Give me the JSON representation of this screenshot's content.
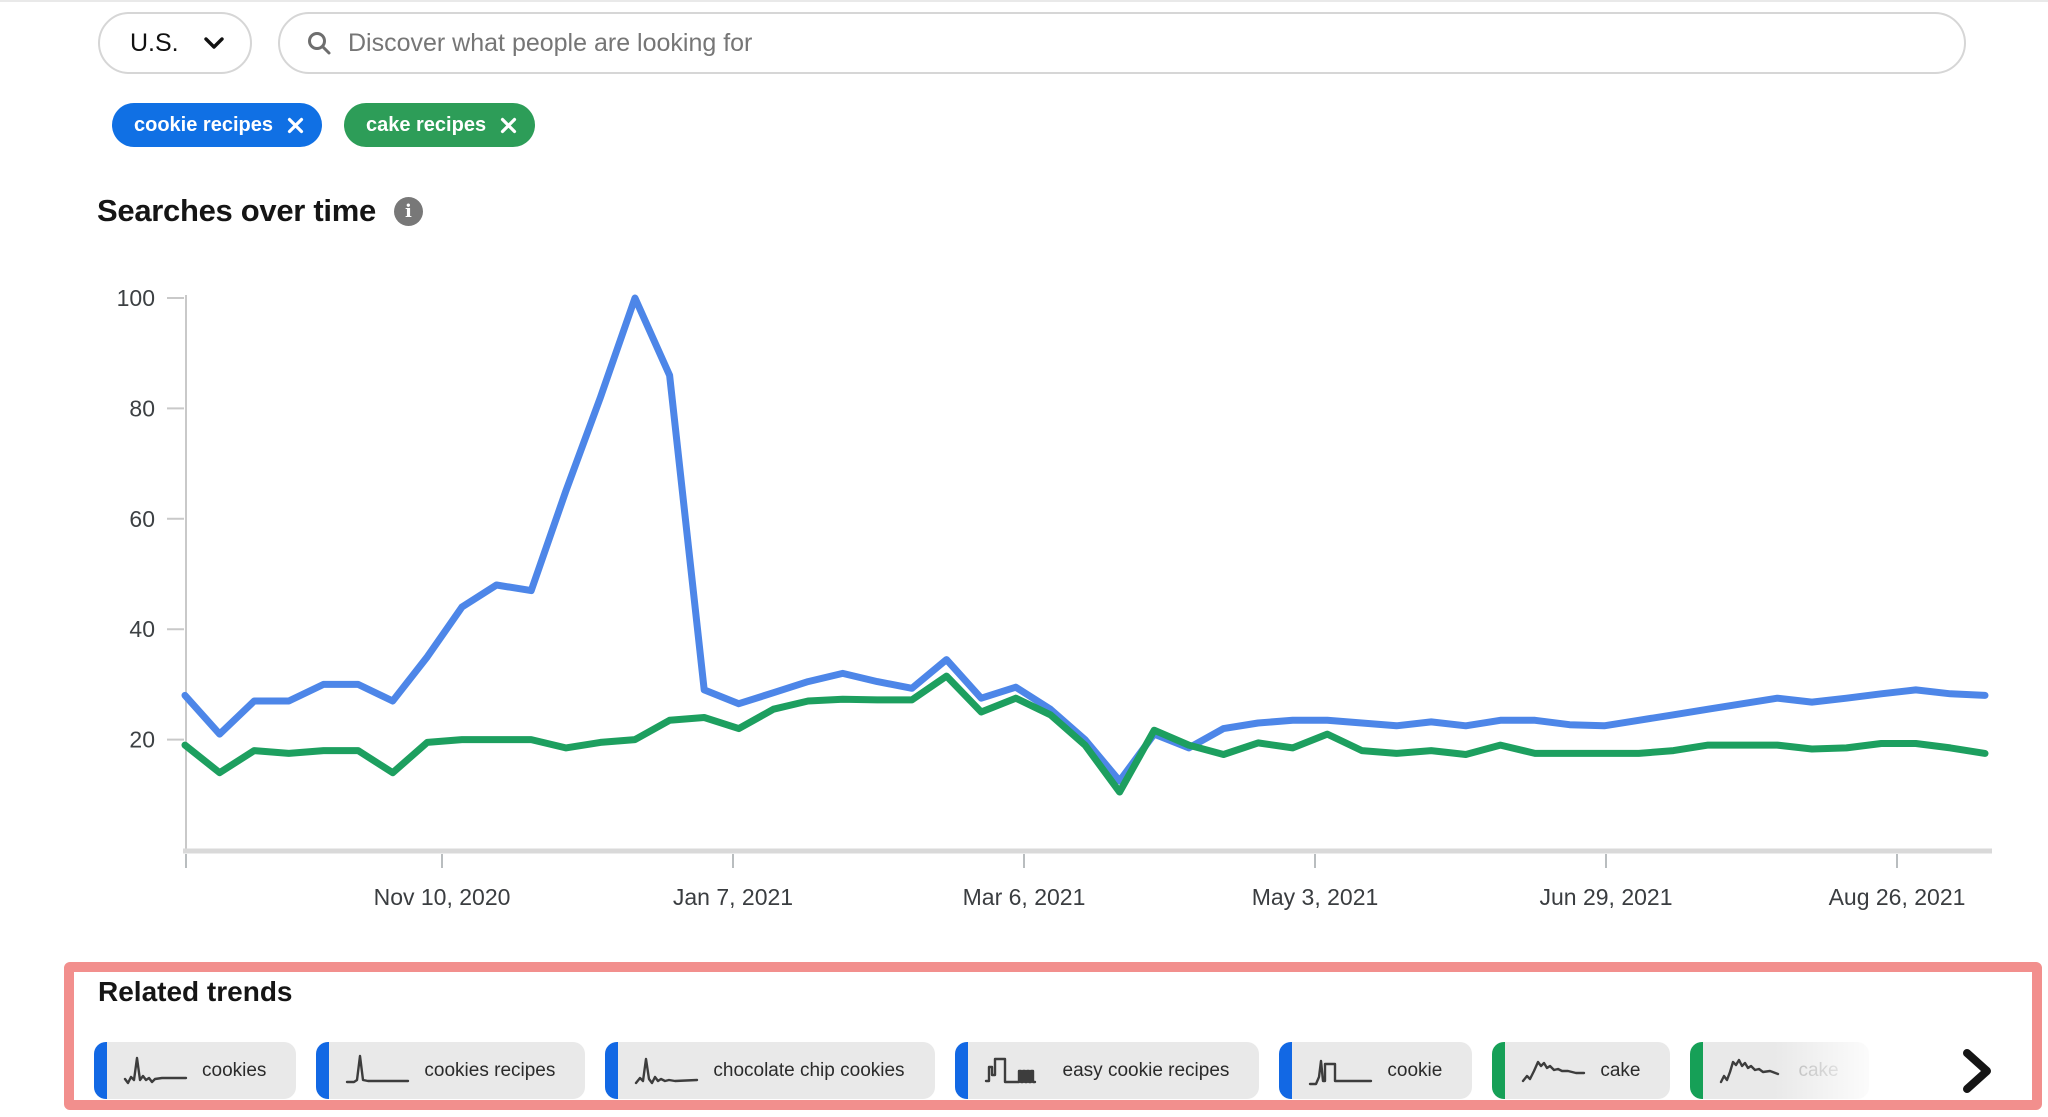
{
  "header": {
    "region": "U.S.",
    "search_placeholder": "Discover what people are looking for"
  },
  "chips": [
    {
      "label": "cookie recipes",
      "color": "#1070e4"
    },
    {
      "label": "cake recipes",
      "color": "#2d9d58"
    }
  ],
  "chart": {
    "title": "Searches over time",
    "info_icon_glyph": "i"
  },
  "chart_data": {
    "type": "line",
    "title": "Searches over time",
    "xlabel": "",
    "ylabel": "",
    "ylim": [
      0,
      100
    ],
    "y_ticks": [
      20,
      40,
      60,
      80,
      100
    ],
    "grid": false,
    "legend_position": "none",
    "x_tick_labels": [
      "Nov 10, 2020",
      "Jan 7, 2021",
      "Mar 6, 2021",
      "May 3, 2021",
      "Jun 29, 2021",
      "Aug 26, 2021"
    ],
    "series": [
      {
        "name": "cookie recipes",
        "color": "#4d86e8",
        "values": [
          28,
          21,
          27,
          27,
          30,
          30,
          27,
          35,
          44,
          48,
          47,
          65,
          82,
          100,
          86,
          29,
          26.5,
          28.5,
          30.5,
          32,
          30.5,
          29.3,
          34.5,
          27.5,
          29.5,
          25.5,
          20,
          12.5,
          21,
          18.5,
          22,
          23,
          23.5,
          23.5,
          23,
          22.5,
          23.2,
          22.5,
          23.5,
          23.5,
          22.7,
          22.5,
          23.5,
          24.5,
          25.5,
          26.5,
          27.5,
          26.8,
          27.5,
          28.3,
          29,
          28.3,
          28
        ]
      },
      {
        "name": "cake recipes",
        "color": "#1d9f5f",
        "values": [
          19,
          14,
          18,
          17.5,
          18,
          18,
          14,
          19.5,
          20,
          20,
          20,
          18.5,
          19.5,
          20,
          23.5,
          24,
          22,
          25.5,
          27,
          27.3,
          27.2,
          27.2,
          31.5,
          25,
          27.5,
          24.5,
          19,
          10.5,
          21.7,
          19,
          17.3,
          19.4,
          18.5,
          21,
          18,
          17.5,
          18,
          17.3,
          19,
          17.5,
          17.5,
          17.5,
          17.5,
          18,
          19,
          19,
          19,
          18.3,
          18.5,
          19.3,
          19.3,
          18.5,
          17.5
        ]
      }
    ]
  },
  "related": {
    "title": "Related trends",
    "highlight_color": "#f28f8d",
    "items": [
      {
        "label": "cookies",
        "bar_color": "#1268e4",
        "faded": false,
        "sparkline": [
          [
            3,
            30
          ],
          [
            6,
            34
          ],
          [
            9,
            28
          ],
          [
            12,
            31
          ],
          [
            15,
            9
          ],
          [
            18,
            31
          ],
          [
            21,
            27
          ],
          [
            24,
            31
          ],
          [
            27,
            29
          ],
          [
            30,
            33
          ],
          [
            33,
            30
          ],
          [
            40,
            29
          ],
          [
            64,
            29
          ]
        ]
      },
      {
        "label": "cookies recipes",
        "bar_color": "#1268e4",
        "faded": false,
        "sparkline": [
          [
            3,
            33
          ],
          [
            10,
            33
          ],
          [
            13,
            31
          ],
          [
            16,
            7
          ],
          [
            19,
            31
          ],
          [
            24,
            32
          ],
          [
            64,
            32
          ]
        ]
      },
      {
        "label": "chocolate chip cookies",
        "bar_color": "#1268e4",
        "faded": false,
        "sparkline": [
          [
            3,
            34
          ],
          [
            7,
            29
          ],
          [
            10,
            32
          ],
          [
            13,
            10
          ],
          [
            16,
            30
          ],
          [
            19,
            34
          ],
          [
            22,
            28
          ],
          [
            25,
            32
          ],
          [
            28,
            30
          ],
          [
            32,
            32
          ],
          [
            36,
            31
          ],
          [
            42,
            32
          ],
          [
            64,
            31
          ]
        ]
      },
      {
        "label": "easy cookie recipes",
        "bar_color": "#1268e4",
        "faded": false,
        "sparkline": [
          [
            3,
            32
          ],
          [
            6,
            32
          ],
          [
            6,
            18
          ],
          [
            9,
            18
          ],
          [
            9,
            26
          ],
          [
            12,
            26
          ],
          [
            12,
            10
          ],
          [
            22,
            10
          ],
          [
            22,
            33
          ],
          [
            36,
            33
          ],
          [
            36,
            22
          ],
          [
            38,
            22
          ],
          [
            38,
            33
          ],
          [
            40,
            33
          ],
          [
            40,
            22
          ],
          [
            42,
            22
          ],
          [
            42,
            33
          ],
          [
            44,
            33
          ],
          [
            44,
            22
          ],
          [
            46,
            22
          ],
          [
            46,
            33
          ],
          [
            48,
            33
          ],
          [
            48,
            22
          ],
          [
            50,
            22
          ],
          [
            50,
            33
          ],
          [
            52,
            33
          ]
        ]
      },
      {
        "label": "cookie",
        "bar_color": "#1268e4",
        "faded": false,
        "sparkline": [
          [
            3,
            35
          ],
          [
            9,
            35
          ],
          [
            12,
            28
          ],
          [
            14,
            12
          ],
          [
            16,
            32
          ],
          [
            18,
            32
          ],
          [
            18,
            15
          ],
          [
            28,
            15
          ],
          [
            28,
            32
          ],
          [
            34,
            32
          ],
          [
            64,
            32
          ]
        ]
      },
      {
        "label": "cake",
        "bar_color": "#16a057",
        "faded": false,
        "sparkline": [
          [
            3,
            32
          ],
          [
            7,
            27
          ],
          [
            10,
            30
          ],
          [
            14,
            22
          ],
          [
            18,
            13
          ],
          [
            21,
            17
          ],
          [
            24,
            14
          ],
          [
            27,
            19
          ],
          [
            30,
            17
          ],
          [
            34,
            21
          ],
          [
            38,
            20
          ],
          [
            42,
            22
          ],
          [
            48,
            22
          ],
          [
            56,
            24
          ],
          [
            64,
            24
          ]
        ]
      },
      {
        "label": "cake",
        "bar_color": "#16a057",
        "faded": true,
        "sparkline": [
          [
            3,
            33
          ],
          [
            6,
            27
          ],
          [
            9,
            31
          ],
          [
            12,
            23
          ],
          [
            15,
            13
          ],
          [
            18,
            16
          ],
          [
            21,
            11
          ],
          [
            24,
            17
          ],
          [
            27,
            14
          ],
          [
            30,
            19
          ],
          [
            33,
            17
          ],
          [
            37,
            21
          ],
          [
            41,
            20
          ],
          [
            45,
            23
          ],
          [
            52,
            22
          ],
          [
            60,
            25
          ]
        ]
      }
    ]
  }
}
